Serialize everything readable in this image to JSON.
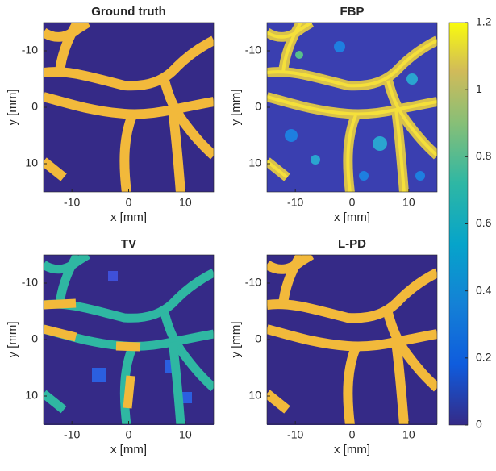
{
  "chart_data": [
    {
      "type": "image",
      "title": "Ground truth",
      "xlabel": "x [mm]",
      "ylabel": "y [mm]",
      "xlim": [
        -15,
        15
      ],
      "ylim": [
        -15,
        15
      ],
      "y_reversed": true,
      "xticks": [
        -10,
        0,
        10
      ],
      "yticks": [
        -10,
        0,
        10
      ]
    },
    {
      "type": "image",
      "title": "FBP",
      "xlabel": "x [mm]",
      "ylabel": "y [mm]",
      "xlim": [
        -15,
        15
      ],
      "ylim": [
        -15,
        15
      ],
      "y_reversed": true,
      "xticks": [
        -10,
        0,
        10
      ],
      "yticks": [
        -10,
        0,
        10
      ]
    },
    {
      "type": "image",
      "title": "TV",
      "xlabel": "x [mm]",
      "ylabel": "y [mm]",
      "xlim": [
        -15,
        15
      ],
      "ylim": [
        -15,
        15
      ],
      "y_reversed": true,
      "xticks": [
        -10,
        0,
        10
      ],
      "yticks": [
        -10,
        0,
        10
      ]
    },
    {
      "type": "image",
      "title": "L-PD",
      "xlabel": "x [mm]",
      "ylabel": "y [mm]",
      "xlim": [
        -15,
        15
      ],
      "ylim": [
        -15,
        15
      ],
      "y_reversed": true,
      "xticks": [
        -10,
        0,
        10
      ],
      "yticks": [
        -10,
        0,
        10
      ]
    }
  ],
  "colorbar": {
    "clim": [
      0,
      1.2
    ],
    "ticks": [
      0,
      0.2,
      0.4,
      0.6,
      0.8,
      1,
      1.2
    ]
  }
}
